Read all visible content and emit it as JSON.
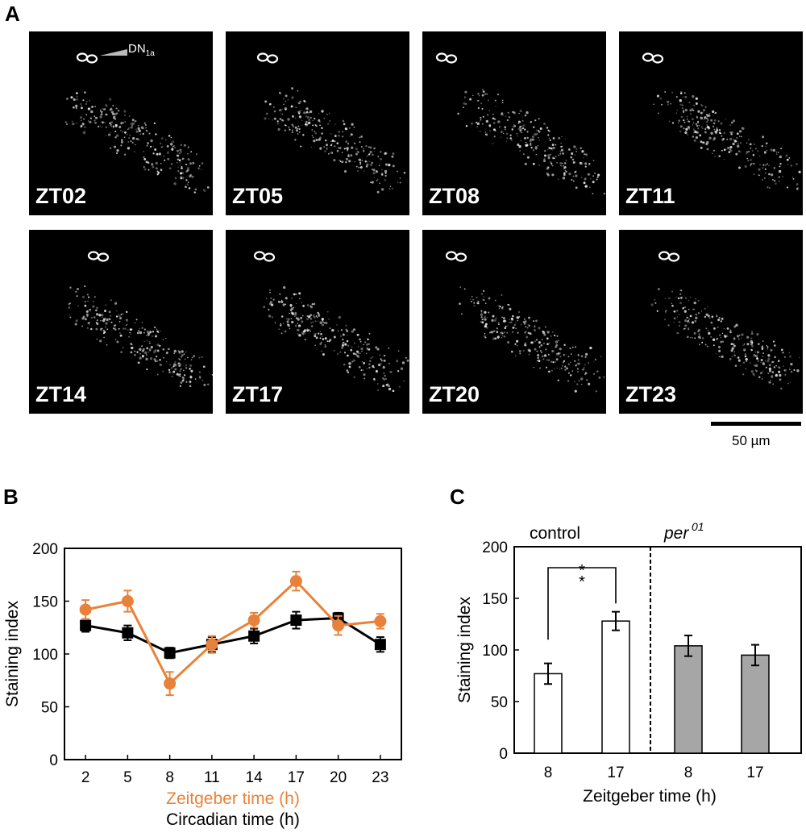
{
  "panels": {
    "a": "A",
    "b": "B",
    "c": "C"
  },
  "micrographs": {
    "labels": [
      "ZT02",
      "ZT05",
      "ZT08",
      "ZT11",
      "ZT14",
      "ZT17",
      "ZT20",
      "ZT23"
    ],
    "cell_label": "DN",
    "cell_label_sub": "1a",
    "scale_bar_label": "50 µm"
  },
  "colors": {
    "orange": "#E8823A",
    "black": "#000000",
    "gray_bar": "#A6A6A6",
    "white_bar": "#FFFFFF"
  },
  "chart_data": [
    {
      "type": "line",
      "panel": "B",
      "x": [
        2,
        5,
        8,
        11,
        14,
        17,
        20,
        23
      ],
      "ylabel": "Staining index",
      "xlabel_primary": "Zeitgeber time (h)",
      "xlabel_secondary": "Circadian time (h)",
      "ylim": [
        0,
        200
      ],
      "yticks": [
        0,
        50,
        100,
        150,
        200
      ],
      "series": [
        {
          "name": "Zeitgeber time (h)",
          "color": "#E8823A",
          "marker": "circle",
          "values": [
            142,
            150,
            72,
            109,
            132,
            169,
            127,
            131
          ],
          "errors": [
            9,
            10,
            11,
            8,
            7,
            9,
            9,
            7
          ]
        },
        {
          "name": "Circadian time (h)",
          "color": "#000000",
          "marker": "square",
          "values": [
            127,
            120,
            101,
            109,
            117,
            132,
            134,
            109
          ],
          "errors": [
            6,
            7,
            5,
            7,
            7,
            8,
            5,
            7
          ]
        }
      ]
    },
    {
      "type": "bar",
      "panel": "C",
      "groups": [
        "control",
        "per"
      ],
      "group_sup": "01",
      "categories": [
        "8",
        "17",
        "8",
        "17"
      ],
      "values": [
        77,
        128,
        104,
        95
      ],
      "errors": [
        10,
        9,
        10,
        10
      ],
      "fills": [
        "#FFFFFF",
        "#FFFFFF",
        "#A6A6A6",
        "#A6A6A6"
      ],
      "ylabel": "Staining index",
      "xlabel": "Zeitgeber time (h)",
      "ylim": [
        0,
        200
      ],
      "yticks": [
        0,
        50,
        100,
        150,
        200
      ],
      "significance": "**"
    }
  ]
}
